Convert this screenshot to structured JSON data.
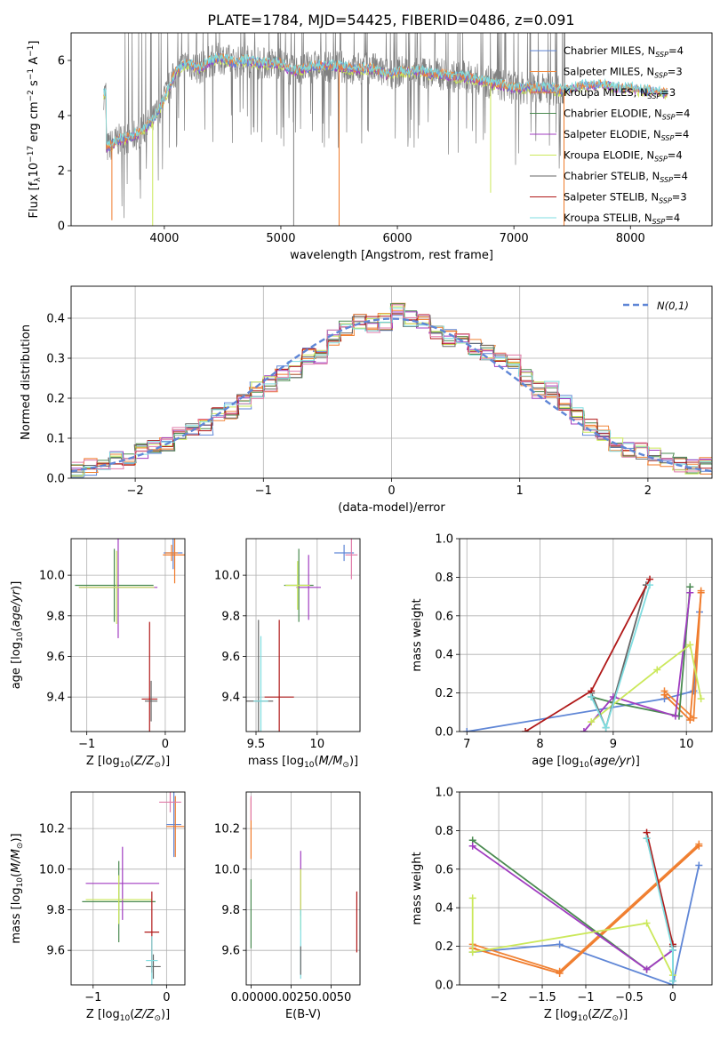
{
  "title": "PLATE=1784, MJD=54425, FIBERID=0486, z=0.091",
  "colors": {
    "chabrier_miles": "#5f86d6",
    "salpeter_miles": "#f08436",
    "kroupa_miles": "#f07a2a",
    "chabrier_elodie": "#4a8a50",
    "salpeter_elodie": "#a03cc0",
    "kroupa_elodie": "#cbe85a",
    "chabrier_stelib": "#666666",
    "salpeter_stelib": "#b01818",
    "kroupa_stelib": "#7fdde0",
    "pink": "#e07aa8",
    "data": "#808080",
    "normal_curve": "#5f86d6",
    "grid": "#b0b0b0"
  },
  "chart_data": [
    {
      "id": "spectrum",
      "type": "line",
      "xlabel": "wavelength [Angstrom, rest frame]",
      "ylabel": "Flux [f_λ 10^-17 erg cm^-2 s^-1 A^-1]",
      "xlim": [
        3200,
        8700
      ],
      "ylim": [
        0,
        7
      ],
      "xticks": [
        4000,
        5000,
        6000,
        7000,
        8000
      ],
      "yticks": [
        0,
        2,
        4,
        6
      ],
      "grid": false,
      "legend_position": "right",
      "legend": [
        {
          "name": "Chabrier MILES, N_SSP=4",
          "base": "Chabrier MILES, N",
          "sub": "SSP",
          "tail": "=4",
          "color": "chabrier_miles"
        },
        {
          "name": "Salpeter MILES, N_SSP=3",
          "base": "Salpeter MILES, N",
          "sub": "SSP",
          "tail": "=3",
          "color": "salpeter_miles"
        },
        {
          "name": "Kroupa MILES, N_SSP=3",
          "base": "Kroupa MILES, N",
          "sub": "SSP",
          "tail": "=3",
          "color": "kroupa_miles"
        },
        {
          "name": "Chabrier ELODIE, N_SSP=4",
          "base": "Chabrier ELODIE, N",
          "sub": "SSP",
          "tail": "=4",
          "color": "chabrier_elodie"
        },
        {
          "name": "Salpeter ELODIE, N_SSP=4",
          "base": "Salpeter ELODIE, N",
          "sub": "SSP",
          "tail": "=4",
          "color": "salpeter_elodie"
        },
        {
          "name": "Kroupa ELODIE, N_SSP=4",
          "base": "Kroupa ELODIE, N",
          "sub": "SSP",
          "tail": "=4",
          "color": "kroupa_elodie"
        },
        {
          "name": "Chabrier STELIB, N_SSP=4",
          "base": "Chabrier STELIB, N",
          "sub": "SSP",
          "tail": "=4",
          "color": "chabrier_stelib"
        },
        {
          "name": "Salpeter STELIB, N_SSP=3",
          "base": "Salpeter STELIB, N",
          "sub": "SSP",
          "tail": "=3",
          "color": "salpeter_stelib"
        },
        {
          "name": "Kroupa STELIB, N_SSP=4",
          "base": "Kroupa STELIB, N",
          "sub": "SSP",
          "tail": "=4",
          "color": "kroupa_stelib"
        }
      ],
      "model_continuum": [
        [
          3500,
          2.8
        ],
        [
          3600,
          3.1
        ],
        [
          3700,
          3.2
        ],
        [
          3800,
          3.4
        ],
        [
          3900,
          3.8
        ],
        [
          4000,
          4.6
        ],
        [
          4100,
          5.6
        ],
        [
          4200,
          5.9
        ],
        [
          4300,
          5.7
        ],
        [
          4400,
          6.0
        ],
        [
          4500,
          6.1
        ],
        [
          4600,
          5.9
        ],
        [
          4700,
          6.0
        ],
        [
          4800,
          5.9
        ],
        [
          4900,
          5.9
        ],
        [
          5000,
          5.9
        ],
        [
          5100,
          5.6
        ],
        [
          5200,
          5.7
        ],
        [
          5300,
          5.8
        ],
        [
          5400,
          5.8
        ],
        [
          5500,
          5.8
        ],
        [
          5600,
          5.7
        ],
        [
          5700,
          5.7
        ],
        [
          5800,
          5.7
        ],
        [
          5900,
          5.5
        ],
        [
          6000,
          5.6
        ],
        [
          6100,
          5.6
        ],
        [
          6200,
          5.6
        ],
        [
          6300,
          5.5
        ],
        [
          6400,
          5.5
        ],
        [
          6500,
          5.4
        ],
        [
          6600,
          5.4
        ],
        [
          6700,
          5.3
        ],
        [
          6800,
          5.2
        ],
        [
          6900,
          5.1
        ],
        [
          7000,
          5.0
        ],
        [
          7100,
          5.0
        ],
        [
          7200,
          5.0
        ],
        [
          7300,
          5.0
        ],
        [
          7400,
          4.9
        ],
        [
          7500,
          5.0
        ],
        [
          7600,
          5.1
        ],
        [
          7700,
          5.1
        ],
        [
          7800,
          5.1
        ],
        [
          7900,
          5.0
        ],
        [
          8000,
          5.0
        ],
        [
          8100,
          4.9
        ],
        [
          8200,
          4.9
        ],
        [
          8300,
          4.8
        ]
      ],
      "data_range": [
        3480,
        7440
      ],
      "model_range": [
        3480,
        8320
      ],
      "spikes": [
        {
          "x": 3550,
          "y": 0.2,
          "color": "kroupa_miles"
        },
        {
          "x": 3900,
          "y": 0.0,
          "color": "kroupa_elodie"
        },
        {
          "x": 5110,
          "y": 0.0,
          "color": "data"
        },
        {
          "x": 5500,
          "y": 0.0,
          "color": "kroupa_miles"
        },
        {
          "x": 6800,
          "y": 1.2,
          "color": "kroupa_elodie"
        },
        {
          "x": 7430,
          "y": 0.0,
          "color": "kroupa_miles"
        }
      ]
    },
    {
      "id": "residuals",
      "type": "histogram",
      "xlabel": "(data-model)/error",
      "ylabel": "Normed distribution",
      "xlim": [
        -2.5,
        2.5
      ],
      "ylim": [
        0,
        0.48
      ],
      "xticks": [
        -2,
        -1,
        0,
        1,
        2
      ],
      "yticks": [
        0.0,
        0.1,
        0.2,
        0.3,
        0.4
      ],
      "grid": true,
      "legend_position": "top-right",
      "legend": "N(0,1)",
      "bin_edges": [
        -2.5,
        -2.4,
        -2.3,
        -2.2,
        -2.1,
        -2.0,
        -1.9,
        -1.8,
        -1.7,
        -1.6,
        -1.5,
        -1.4,
        -1.3,
        -1.2,
        -1.1,
        -1.0,
        -0.9,
        -0.8,
        -0.7,
        -0.6,
        -0.5,
        -0.4,
        -0.3,
        -0.2,
        -0.1,
        0.0,
        0.1,
        0.2,
        0.3,
        0.4,
        0.5,
        0.6,
        0.7,
        0.8,
        0.9,
        1.0,
        1.1,
        1.2,
        1.3,
        1.4,
        1.5,
        1.6,
        1.7,
        1.8,
        1.9,
        2.0,
        2.1,
        2.2,
        2.3,
        2.4,
        2.5
      ],
      "base_values": [
        0.025,
        0.028,
        0.035,
        0.045,
        0.052,
        0.065,
        0.075,
        0.09,
        0.108,
        0.125,
        0.13,
        0.155,
        0.168,
        0.195,
        0.22,
        0.235,
        0.258,
        0.27,
        0.305,
        0.3,
        0.35,
        0.378,
        0.39,
        0.385,
        0.39,
        0.425,
        0.4,
        0.39,
        0.36,
        0.35,
        0.345,
        0.33,
        0.31,
        0.3,
        0.29,
        0.25,
        0.22,
        0.22,
        0.19,
        0.155,
        0.13,
        0.11,
        0.085,
        0.075,
        0.07,
        0.055,
        0.045,
        0.038,
        0.032,
        0.03
      ],
      "normal_curve": {
        "mu": 0,
        "sigma": 1
      }
    },
    {
      "id": "age-vs-Z",
      "type": "errorbar",
      "xlabel": "Z [log10(Z/Z_sun)]",
      "ylabel": "age [log10(age/yr)]",
      "xlim": [
        -1.2,
        0.25
      ],
      "ylim": [
        9.23,
        10.18
      ],
      "xticks": [
        -1,
        0
      ],
      "yticks": [
        9.4,
        9.6,
        9.8,
        10.0
      ],
      "grid": true,
      "points": [
        {
          "x": -0.65,
          "y": 9.95,
          "xerr": 0.5,
          "yerr": 0.18,
          "color": "chabrier_elodie"
        },
        {
          "x": -0.6,
          "y": 9.94,
          "xerr": 0.5,
          "yerr": 0.25,
          "color": "salpeter_elodie"
        },
        {
          "x": -0.62,
          "y": 9.94,
          "xerr": 0.48,
          "yerr": 0.18,
          "color": "kroupa_elodie"
        },
        {
          "x": -0.2,
          "y": 9.39,
          "xerr": 0.1,
          "yerr": 0.38,
          "color": "salpeter_stelib"
        },
        {
          "x": -0.18,
          "y": 9.38,
          "xerr": 0.08,
          "yerr": 0.1,
          "color": "chabrier_stelib"
        },
        {
          "x": 0.1,
          "y": 10.11,
          "xerr": 0.12,
          "yerr": 0.08,
          "color": "chabrier_miles"
        },
        {
          "x": 0.12,
          "y": 10.1,
          "xerr": 0.15,
          "yerr": 0.14,
          "color": "kroupa_miles"
        },
        {
          "x": 0.08,
          "y": 10.11,
          "xerr": 0.08,
          "yerr": 0.04,
          "color": "salpeter_miles"
        }
      ]
    },
    {
      "id": "age-vs-mass",
      "type": "errorbar",
      "xlabel": "mass [log10(M/M_sun)]",
      "ylabel": "",
      "xlim": [
        9.42,
        10.35
      ],
      "ylim": [
        9.23,
        10.18
      ],
      "xticks": [
        9.5,
        10.0
      ],
      "yticks": [
        9.4,
        9.6,
        9.8,
        10.0
      ],
      "grid": true,
      "points": [
        {
          "x": 9.85,
          "y": 9.95,
          "xerr": 0.12,
          "yerr": 0.18,
          "color": "chabrier_elodie"
        },
        {
          "x": 9.93,
          "y": 9.94,
          "xerr": 0.1,
          "yerr": 0.16,
          "color": "salpeter_elodie"
        },
        {
          "x": 9.84,
          "y": 9.95,
          "xerr": 0.1,
          "yerr": 0.12,
          "color": "kroupa_elodie"
        },
        {
          "x": 9.69,
          "y": 9.4,
          "xerr": 0.12,
          "yerr": 0.38,
          "color": "salpeter_stelib"
        },
        {
          "x": 9.52,
          "y": 9.38,
          "xerr": 0.12,
          "yerr": 0.4,
          "color": "chabrier_stelib"
        },
        {
          "x": 9.54,
          "y": 9.38,
          "xerr": 0.06,
          "yerr": 0.32,
          "color": "kroupa_stelib"
        },
        {
          "x": 10.22,
          "y": 10.11,
          "xerr": 0.08,
          "yerr": 0.04,
          "color": "chabrier_miles"
        },
        {
          "x": 10.28,
          "y": 10.1,
          "xerr": 0.05,
          "yerr": 0.12,
          "color": "pink"
        }
      ]
    },
    {
      "id": "weight-vs-age",
      "type": "line",
      "xlabel": "age [log10(age/yr)]",
      "ylabel": "mass weight",
      "xlim": [
        6.9,
        10.35
      ],
      "ylim": [
        0,
        1.0
      ],
      "xticks": [
        7,
        8,
        9,
        10
      ],
      "yticks": [
        0.0,
        0.2,
        0.4,
        0.6,
        0.8,
        1.0
      ],
      "grid": true,
      "series": [
        {
          "color": "chabrier_miles",
          "x": [
            7.0,
            9.7,
            10.1,
            10.18
          ],
          "y": [
            0.0,
            0.17,
            0.21,
            0.62
          ]
        },
        {
          "color": "salpeter_miles",
          "x": [
            9.7,
            10.1,
            10.2
          ],
          "y": [
            0.21,
            0.07,
            0.73
          ]
        },
        {
          "color": "kroupa_miles",
          "x": [
            9.7,
            10.05,
            10.2
          ],
          "y": [
            0.19,
            0.06,
            0.72
          ]
        },
        {
          "color": "chabrier_elodie",
          "x": [
            8.7,
            9.0,
            9.9,
            10.05
          ],
          "y": [
            0.18,
            0.15,
            0.08,
            0.75
          ]
        },
        {
          "color": "salpeter_elodie",
          "x": [
            8.6,
            9.0,
            9.85,
            10.05
          ],
          "y": [
            0.0,
            0.18,
            0.08,
            0.72
          ]
        },
        {
          "color": "kroupa_elodie",
          "x": [
            8.7,
            9.6,
            10.05,
            10.2
          ],
          "y": [
            0.05,
            0.32,
            0.45,
            0.17
          ]
        },
        {
          "color": "chabrier_stelib",
          "x": [
            8.7,
            8.9,
            9.45
          ],
          "y": [
            0.2,
            0.02,
            0.76
          ]
        },
        {
          "color": "salpeter_stelib",
          "x": [
            7.8,
            8.7,
            9.5
          ],
          "y": [
            0.0,
            0.21,
            0.79
          ]
        },
        {
          "color": "kroupa_stelib",
          "x": [
            8.7,
            8.9,
            9.5
          ],
          "y": [
            0.18,
            0.02,
            0.76
          ]
        }
      ]
    },
    {
      "id": "mass-vs-Z",
      "type": "errorbar",
      "xlabel": "Z [log10(Z/Z_sun)]",
      "ylabel": "mass [log10(M/M_sun)]",
      "xlim": [
        -1.3,
        0.25
      ],
      "ylim": [
        9.43,
        10.38
      ],
      "xticks": [
        -1,
        0
      ],
      "yticks": [
        9.6,
        9.8,
        10.0,
        10.2
      ],
      "grid": true,
      "points": [
        {
          "x": -0.65,
          "y": 9.84,
          "xerr": 0.5,
          "yerr": 0.2,
          "color": "chabrier_elodie"
        },
        {
          "x": -0.6,
          "y": 9.93,
          "xerr": 0.5,
          "yerr": 0.18,
          "color": "salpeter_elodie"
        },
        {
          "x": -0.65,
          "y": 9.85,
          "xerr": 0.45,
          "yerr": 0.12,
          "color": "kroupa_elodie"
        },
        {
          "x": -0.2,
          "y": 9.69,
          "xerr": 0.1,
          "yerr": 0.2,
          "color": "salpeter_stelib"
        },
        {
          "x": -0.18,
          "y": 9.52,
          "xerr": 0.1,
          "yerr": 0.06,
          "color": "chabrier_stelib"
        },
        {
          "x": -0.2,
          "y": 9.55,
          "xerr": 0.08,
          "yerr": 0.12,
          "color": "kroupa_stelib"
        },
        {
          "x": 0.1,
          "y": 10.22,
          "xerr": 0.1,
          "yerr": 0.16,
          "color": "chabrier_miles"
        },
        {
          "x": 0.12,
          "y": 10.21,
          "xerr": 0.12,
          "yerr": 0.15,
          "color": "kroupa_miles"
        },
        {
          "x": 0.05,
          "y": 10.33,
          "xerr": 0.15,
          "yerr": 0.05,
          "color": "pink"
        }
      ]
    },
    {
      "id": "mass-vs-EBV",
      "type": "errorbar",
      "xlabel": "E(B-V)",
      "ylabel": "",
      "xlim": [
        -0.0003,
        0.0068
      ],
      "ylim": [
        9.43,
        10.38
      ],
      "xticks": [
        0.0,
        0.0025,
        0.005
      ],
      "xticklabels": [
        "0.0000",
        "0.0025",
        "0.0050"
      ],
      "yticks": [
        9.6,
        9.8,
        10.0,
        10.2
      ],
      "grid": true,
      "points": [
        {
          "x": 0.0,
          "y": 9.78,
          "xerr": 0,
          "yerr": 0.17,
          "color": "chabrier_elodie"
        },
        {
          "x": 0.0,
          "y": 10.2,
          "xerr": 0,
          "yerr": 0.15,
          "color": "kroupa_miles"
        },
        {
          "x": 0.0,
          "y": 10.3,
          "xerr": 0,
          "yerr": 0.06,
          "color": "pink"
        },
        {
          "x": 0.0031,
          "y": 9.93,
          "xerr": 0,
          "yerr": 0.16,
          "color": "salpeter_elodie"
        },
        {
          "x": 0.0031,
          "y": 9.85,
          "xerr": 0,
          "yerr": 0.15,
          "color": "kroupa_elodie"
        },
        {
          "x": 0.0031,
          "y": 9.63,
          "xerr": 0,
          "yerr": 0.17,
          "color": "kroupa_stelib"
        },
        {
          "x": 0.0031,
          "y": 9.55,
          "xerr": 0,
          "yerr": 0.07,
          "color": "chabrier_stelib"
        },
        {
          "x": 0.0066,
          "y": 9.74,
          "xerr": 0,
          "yerr": 0.15,
          "color": "salpeter_stelib"
        }
      ]
    },
    {
      "id": "weight-vs-Z",
      "type": "line",
      "xlabel": "Z [log10(Z/Z_sun)]",
      "ylabel": "mass weight",
      "xlim": [
        -2.45,
        0.45
      ],
      "ylim": [
        0,
        1.0
      ],
      "xticks": [
        -2.0,
        -1.5,
        -1.0,
        -0.5,
        0.0
      ],
      "yticks": [
        0.0,
        0.2,
        0.4,
        0.6,
        0.8,
        1.0
      ],
      "grid": true,
      "series": [
        {
          "color": "chabrier_miles",
          "x": [
            -2.3,
            -1.3,
            0.0,
            0.3
          ],
          "y": [
            0.17,
            0.21,
            0.0,
            0.62
          ]
        },
        {
          "color": "salpeter_miles",
          "x": [
            -2.3,
            -1.3,
            0.3
          ],
          "y": [
            0.21,
            0.07,
            0.73
          ]
        },
        {
          "color": "kroupa_miles",
          "x": [
            -2.3,
            -1.3,
            0.3
          ],
          "y": [
            0.19,
            0.06,
            0.72
          ]
        },
        {
          "color": "chabrier_elodie",
          "x": [
            -2.3,
            -0.3,
            0.0
          ],
          "y": [
            0.75,
            0.08,
            0.18
          ]
        },
        {
          "color": "salpeter_elodie",
          "x": [
            -2.3,
            -0.3,
            0.0
          ],
          "y": [
            0.72,
            0.08,
            0.18
          ]
        },
        {
          "color": "kroupa_elodie",
          "x": [
            -2.3,
            -2.3,
            -0.3,
            0.0
          ],
          "y": [
            0.45,
            0.17,
            0.32,
            0.05
          ]
        },
        {
          "color": "chabrier_stelib",
          "x": [
            -0.3,
            0.0,
            0.0
          ],
          "y": [
            0.76,
            0.2,
            0.02
          ]
        },
        {
          "color": "salpeter_stelib",
          "x": [
            -0.3,
            0.0
          ],
          "y": [
            0.79,
            0.21
          ]
        },
        {
          "color": "kroupa_stelib",
          "x": [
            -0.3,
            0.0,
            0.0
          ],
          "y": [
            0.76,
            0.18,
            0.02
          ]
        }
      ]
    }
  ]
}
